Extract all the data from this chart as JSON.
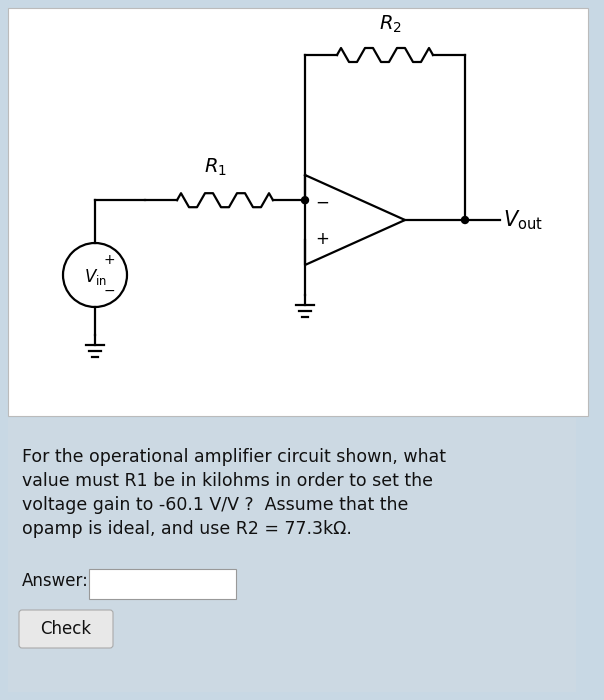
{
  "bg_color": "#c8d8e4",
  "circuit_bg": "#ffffff",
  "text_bg": "#ccd9e3",
  "text_color": "#111111",
  "question_text_lines": [
    "For the operational amplifier circuit shown, what",
    "value must R1 be in kilohms in order to set the",
    "voltage gain to -60.1 V/V ?  Assume that the",
    "opamp is ideal, and use R2 = 77.3kΩ."
  ],
  "answer_label": "Answer:",
  "button_label": "Check",
  "R1_label": "$R_1$",
  "R2_label": "$R_2$",
  "Vin_label": "$V_{\\rm in}$",
  "Vout_label": "$V_{\\rm out}$",
  "line_color": "#000000",
  "line_width": 1.6,
  "font_size_component": 14,
  "font_size_question": 12.5,
  "font_size_answer": 12,
  "font_size_button": 12
}
